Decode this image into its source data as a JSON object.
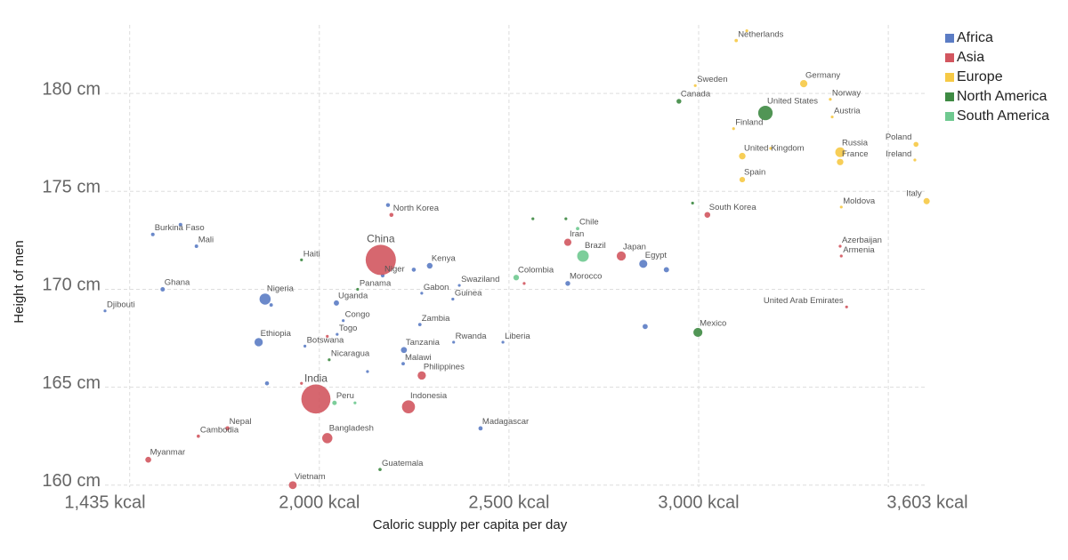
{
  "chart_data": {
    "type": "scatter",
    "x_label": "Caloric supply per capita per day",
    "y_label": "Height of men",
    "xlim": [
      1435,
      3603
    ],
    "xticks": [
      {
        "value": 1435,
        "label": "1,435 kcal"
      },
      {
        "value": 2000,
        "label": "2,000 kcal"
      },
      {
        "value": 2500,
        "label": "2,500 kcal"
      },
      {
        "value": 3000,
        "label": "3,000 kcal"
      },
      {
        "value": 3603,
        "label": "3,603 kcal"
      }
    ],
    "xgrid": [
      1500,
      2000,
      2500,
      3000,
      3500
    ],
    "ylim": [
      159.9,
      183.5
    ],
    "yticks": [
      {
        "value": 160,
        "label": "160 cm"
      },
      {
        "value": 165,
        "label": "165 cm"
      },
      {
        "value": 170,
        "label": "170 cm"
      },
      {
        "value": 175,
        "label": "175 cm"
      },
      {
        "value": 180,
        "label": "180 cm"
      }
    ],
    "grid": true,
    "legend": "top-right",
    "series": [
      {
        "name": "Africa",
        "color": "#5b7cc4",
        "labels": [
          "Djibouti",
          "Burkina Faso",
          null,
          "Mali",
          "Ghana",
          "Nigeria",
          null,
          "Ethiopia",
          null,
          "Botswana",
          "Uganda",
          "Congo",
          "Togo",
          null,
          "Niger",
          null,
          "Gabon",
          "Kenya",
          null,
          "Zambia",
          "Tanzania",
          "Malawi",
          "Rwanda",
          "Guinea",
          "Swaziland",
          "Liberia",
          "Madagascar",
          "Morocco",
          "Egypt",
          null,
          null
        ],
        "x": [
          1435,
          1561,
          1634,
          1676,
          1587,
          1857,
          1873,
          1840,
          1862,
          1962,
          2045,
          2063,
          2047,
          2127,
          2167,
          2181,
          2270,
          2291,
          2249,
          2265,
          2223,
          2221,
          2354,
          2352,
          2369,
          2484,
          2425,
          2655,
          2854,
          2915,
          2859
        ],
        "y": [
          168.9,
          172.8,
          173.3,
          172.2,
          170.0,
          169.5,
          169.2,
          167.3,
          165.2,
          167.1,
          169.3,
          168.4,
          167.7,
          165.8,
          170.7,
          174.3,
          169.8,
          171.2,
          171.0,
          168.2,
          166.9,
          166.2,
          167.3,
          169.5,
          170.2,
          167.3,
          162.9,
          170.3,
          171.3,
          171.0,
          168.1
        ],
        "sizes": [
          1,
          20,
          20,
          19,
          30,
          190,
          18,
          105,
          25,
          2,
          42,
          5,
          8,
          12,
          22,
          24,
          2,
          50,
          26,
          17,
          56,
          18,
          12,
          13,
          1,
          5,
          27,
          36,
          100,
          43,
          40
        ]
      },
      {
        "name": "Asia",
        "color": "#d2565f",
        "labels": [
          "North Korea",
          "China",
          "India",
          "Myanmar",
          "Cambodia",
          "Nepal",
          "Vietnam",
          "Bangladesh",
          "Indonesia",
          "Philippines",
          "Iran",
          "Japan",
          "South Korea",
          "United Arab Emirates",
          "Azerbaijan",
          "Armenia",
          null,
          null,
          null
        ],
        "x": [
          2190,
          2162,
          1991,
          1549,
          1681,
          1758,
          1930,
          2021,
          2235,
          2270,
          2655,
          2796,
          3023,
          3390,
          3373,
          3376,
          1953,
          2540,
          2021
        ],
        "y": [
          173.8,
          171.5,
          164.4,
          161.3,
          162.5,
          162.9,
          160.0,
          162.4,
          164.0,
          165.6,
          172.4,
          171.7,
          173.8,
          169.1,
          172.2,
          171.7,
          165.2,
          170.3,
          167.6
        ],
        "sizes": [
          25,
          1400,
          1300,
          53,
          16,
          29,
          95,
          160,
          260,
          105,
          80,
          127,
          51,
          9,
          10,
          3,
          7,
          8,
          6
        ]
      },
      {
        "name": "Europe",
        "color": "#f6c945",
        "labels": [
          "Netherlands",
          null,
          "Sweden",
          "Germany",
          "Norway",
          "Austria",
          "Finland",
          "United Kingdom",
          null,
          "Russia",
          "France",
          "Spain",
          "Poland",
          "Ireland",
          "Italy",
          "Moldova"
        ],
        "x": [
          3099,
          3127,
          2991,
          3277,
          3347,
          3352,
          3092,
          3115,
          3190,
          3373,
          3373,
          3115,
          3573,
          3570,
          3601,
          3376
        ],
        "y": [
          182.7,
          183.2,
          180.4,
          180.5,
          179.7,
          178.8,
          178.2,
          176.8,
          177.2,
          177.0,
          176.5,
          175.6,
          177.4,
          176.6,
          174.5,
          174.2
        ],
        "sizes": [
          17,
          11,
          10,
          82,
          5,
          9,
          5,
          66,
          5,
          145,
          65,
          47,
          38,
          5,
          60,
          4
        ]
      },
      {
        "name": "North America",
        "color": "#3e8a43",
        "labels": [
          "Canada",
          "United States",
          "Mexico",
          "Haiti",
          "Panama",
          "Nicaragua",
          "Guatemala",
          null,
          null,
          null
        ],
        "x": [
          2948,
          3176,
          2998,
          1953,
          2101,
          2026,
          2160,
          2563,
          2650,
          2984
        ],
        "y": [
          179.6,
          179.0,
          167.8,
          171.5,
          170.0,
          166.4,
          160.8,
          173.6,
          173.6,
          174.4
        ],
        "sizes": [
          36,
          320,
          125,
          11,
          4,
          6,
          16,
          5,
          5,
          3
        ]
      },
      {
        "name": "South America",
        "color": "#6fc990",
        "labels": [
          "Brazil",
          "Chile",
          "Colombia",
          "Peru",
          null
        ],
        "x": [
          2695,
          2681,
          2519,
          2040,
          2094
        ],
        "y": [
          171.7,
          173.1,
          170.6,
          164.2,
          164.2
        ],
        "sizes": [
          205,
          18,
          48,
          31,
          11
        ]
      }
    ]
  }
}
